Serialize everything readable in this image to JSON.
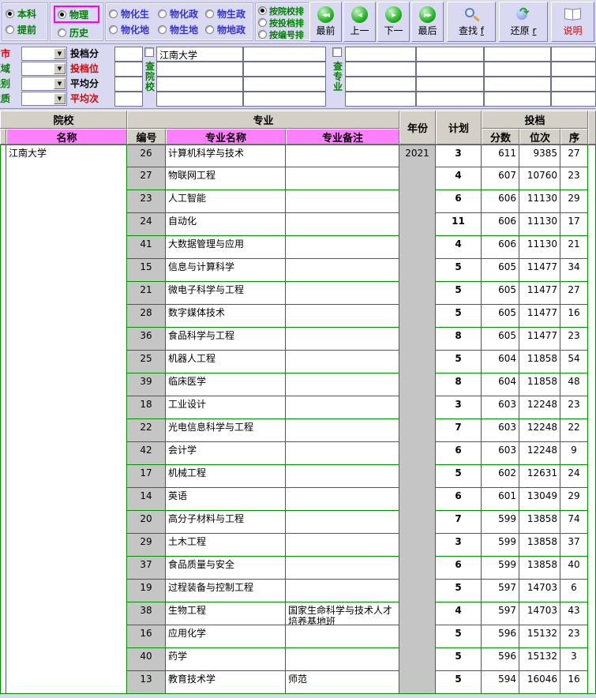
{
  "colors": {
    "accent_pink": "#ff80ff",
    "grid_green": "#009000",
    "toolbar_bg": "#d9d9f2",
    "header_gray": "#d4d0c8",
    "cell_gray": "#c5c5c5",
    "highlight": "#ff00ff",
    "red_text": "#e00000",
    "green_text": "#008000",
    "blue_text": "#3434cc"
  },
  "toolbar": {
    "batch": {
      "options": [
        {
          "label": "本科",
          "selected": true
        },
        {
          "label": "提前",
          "selected": false
        }
      ]
    },
    "subject": {
      "options": [
        {
          "label": "物理",
          "selected": true,
          "highlighted": true
        },
        {
          "label": "历史",
          "selected": false
        }
      ]
    },
    "combo": {
      "options": [
        "物化生",
        "物化政",
        "物生政",
        "物化地",
        "物生地",
        "物地政"
      ]
    },
    "sort": {
      "options": [
        {
          "label": "按院校排",
          "selected": true
        },
        {
          "label": "按投档排",
          "selected": false
        },
        {
          "label": "按编号排",
          "selected": false
        }
      ]
    },
    "buttons": {
      "first": "最前",
      "prev": "上一",
      "next": "下一",
      "last": "最后",
      "find": "查找",
      "find_key": "f",
      "restore": "还原",
      "restore_key": "r",
      "help": "说明"
    }
  },
  "filters": {
    "row_labels": [
      {
        "text": "省市"
      },
      {
        "text": "区域"
      },
      {
        "text": "类别"
      },
      {
        "text": "性质"
      }
    ],
    "metric_labels": [
      {
        "text": "投档分"
      },
      {
        "text": "投档位"
      },
      {
        "text": "平均分"
      },
      {
        "text": "平均次"
      }
    ],
    "check_school_label": "查院校",
    "school_value": "江南大学",
    "check_major_label": "查专业"
  },
  "table": {
    "headers": {
      "school_group": "院校",
      "major_group": "专业",
      "year": "年份",
      "plan": "计划",
      "toudang_group": "投档",
      "name": "名称",
      "code": "编号",
      "major_name": "专业名称",
      "major_note": "专业备注",
      "score": "分数",
      "rank": "位次",
      "seq": "序"
    },
    "school": "江南大学",
    "year": "2021",
    "rows": [
      {
        "code": "26",
        "major": "计算机科学与技术",
        "note": "",
        "plan": "3",
        "score": "611",
        "rank": "9385",
        "seq": "27"
      },
      {
        "code": "27",
        "major": "物联网工程",
        "note": "",
        "plan": "4",
        "score": "607",
        "rank": "10760",
        "seq": "23"
      },
      {
        "code": "23",
        "major": "人工智能",
        "note": "",
        "plan": "6",
        "score": "606",
        "rank": "11130",
        "seq": "29"
      },
      {
        "code": "24",
        "major": "自动化",
        "note": "",
        "plan": "11",
        "score": "606",
        "rank": "11130",
        "seq": "17"
      },
      {
        "code": "41",
        "major": "大数据管理与应用",
        "note": "",
        "plan": "4",
        "score": "606",
        "rank": "11130",
        "seq": "21"
      },
      {
        "code": "15",
        "major": "信息与计算科学",
        "note": "",
        "plan": "5",
        "score": "605",
        "rank": "11477",
        "seq": "34"
      },
      {
        "code": "21",
        "major": "微电子科学与工程",
        "note": "",
        "plan": "5",
        "score": "605",
        "rank": "11477",
        "seq": "27"
      },
      {
        "code": "28",
        "major": "数字媒体技术",
        "note": "",
        "plan": "5",
        "score": "605",
        "rank": "11477",
        "seq": "16"
      },
      {
        "code": "36",
        "major": "食品科学与工程",
        "note": "",
        "plan": "8",
        "score": "605",
        "rank": "11477",
        "seq": "23"
      },
      {
        "code": "25",
        "major": "机器人工程",
        "note": "",
        "plan": "5",
        "score": "604",
        "rank": "11858",
        "seq": "54"
      },
      {
        "code": "39",
        "major": "临床医学",
        "note": "",
        "plan": "8",
        "score": "604",
        "rank": "11858",
        "seq": "48"
      },
      {
        "code": "18",
        "major": "工业设计",
        "note": "",
        "plan": "3",
        "score": "603",
        "rank": "12248",
        "seq": "23"
      },
      {
        "code": "22",
        "major": "光电信息科学与工程",
        "note": "",
        "plan": "7",
        "score": "603",
        "rank": "12248",
        "seq": "22"
      },
      {
        "code": "42",
        "major": "会计学",
        "note": "",
        "plan": "6",
        "score": "603",
        "rank": "12248",
        "seq": "9"
      },
      {
        "code": "17",
        "major": "机械工程",
        "note": "",
        "plan": "5",
        "score": "602",
        "rank": "12631",
        "seq": "24"
      },
      {
        "code": "14",
        "major": "英语",
        "note": "",
        "plan": "6",
        "score": "601",
        "rank": "13049",
        "seq": "29"
      },
      {
        "code": "20",
        "major": "高分子材料与工程",
        "note": "",
        "plan": "7",
        "score": "599",
        "rank": "13858",
        "seq": "74"
      },
      {
        "code": "29",
        "major": "土木工程",
        "note": "",
        "plan": "3",
        "score": "599",
        "rank": "13858",
        "seq": "37"
      },
      {
        "code": "37",
        "major": "食品质量与安全",
        "note": "",
        "plan": "6",
        "score": "599",
        "rank": "13858",
        "seq": "40"
      },
      {
        "code": "19",
        "major": "过程装备与控制工程",
        "note": "",
        "plan": "5",
        "score": "597",
        "rank": "14703",
        "seq": "6"
      },
      {
        "code": "38",
        "major": "生物工程",
        "note": "国家生命科学与技术人才培养基地班",
        "plan": "4",
        "score": "597",
        "rank": "14703",
        "seq": "43"
      },
      {
        "code": "16",
        "major": "应用化学",
        "note": "",
        "plan": "5",
        "score": "596",
        "rank": "15132",
        "seq": "23"
      },
      {
        "code": "40",
        "major": "药学",
        "note": "",
        "plan": "5",
        "score": "596",
        "rank": "15132",
        "seq": "3"
      },
      {
        "code": "13",
        "major": "教育技术学",
        "note": "师范",
        "plan": "5",
        "score": "594",
        "rank": "16046",
        "seq": "16"
      }
    ]
  }
}
